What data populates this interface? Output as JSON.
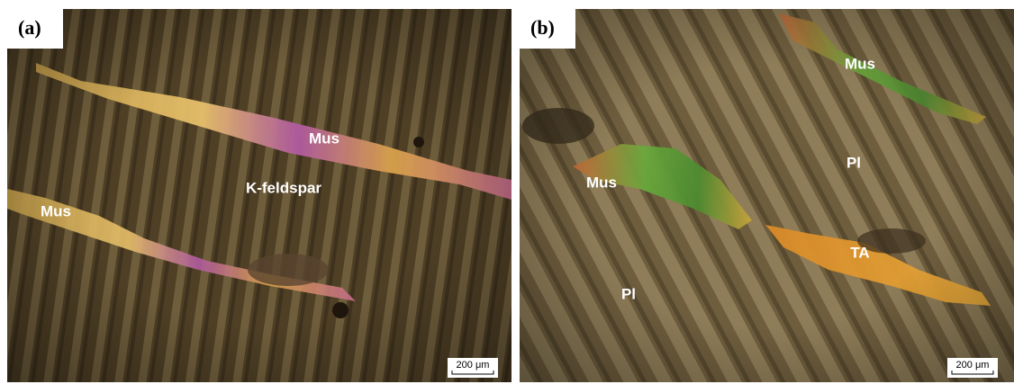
{
  "panels": [
    {
      "label": "(a)",
      "annotations": [
        "Mus",
        "K-feldspar",
        "Mus"
      ],
      "scale_bar": "200 μm"
    },
    {
      "label": "(b)",
      "annotations": [
        "Mus",
        "Pl",
        "Mus",
        "TA",
        "Pl"
      ],
      "scale_bar": "200 μm"
    }
  ]
}
